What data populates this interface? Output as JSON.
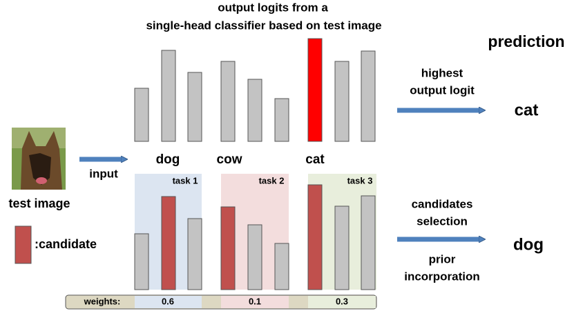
{
  "title": [
    "output logits from a",
    "single-head classifier based on test image"
  ],
  "prediction": {
    "heading": "prediction",
    "top_rule": [
      "highest",
      "output logit"
    ],
    "top_result": "cat",
    "bottom_rule_above": [
      "candidates",
      "selection"
    ],
    "bottom_rule_below": [
      "prior",
      "incorporation"
    ],
    "bottom_result": "dog"
  },
  "class_labels": [
    "dog",
    "cow",
    "cat"
  ],
  "input": {
    "caption": "test image",
    "arrow_label": "input"
  },
  "legend": ":candidate",
  "tasks": [
    "task 1",
    "task 2",
    "task 3"
  ],
  "weights": {
    "label": "weights:",
    "values": [
      "0.6",
      "0.1",
      "0.3"
    ]
  }
}
